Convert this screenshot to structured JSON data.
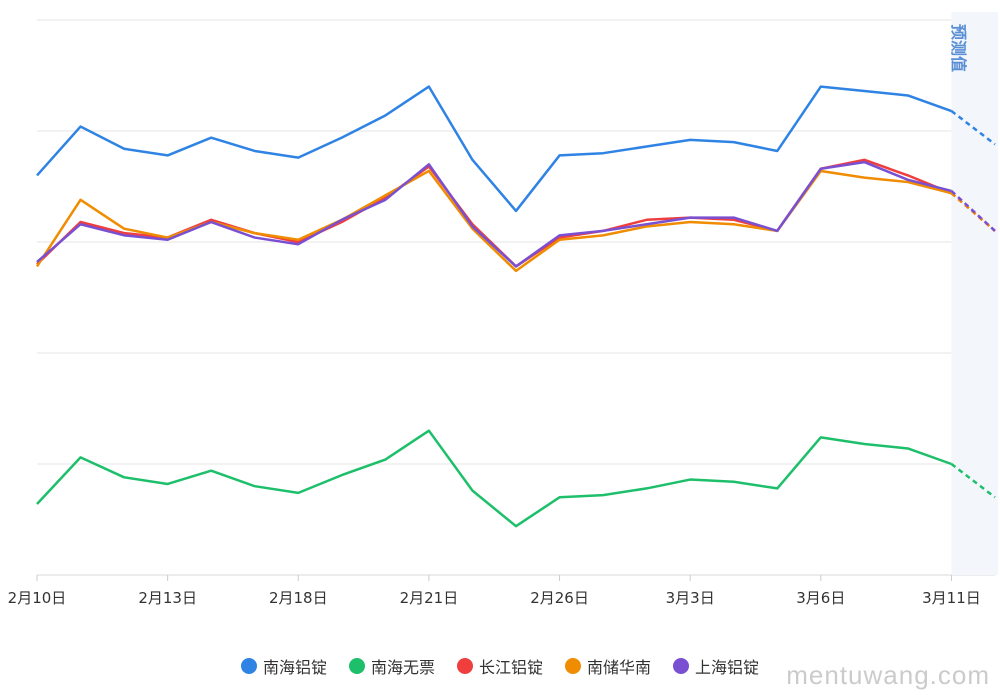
{
  "chart_data": {
    "type": "line",
    "x": [
      "2月10日",
      "",
      "",
      "2月13日",
      "",
      "",
      "2月18日",
      "",
      "",
      "2月21日",
      "",
      "",
      "2月26日",
      "",
      "",
      "3月3日",
      "",
      "",
      "3月6日",
      "",
      "",
      "3月11日",
      ""
    ],
    "xtick_labels": [
      "2月10日",
      "2月13日",
      "2月18日",
      "2月21日",
      "2月26日",
      "3月3日",
      "3月6日",
      "3月11日"
    ],
    "forecast_start_index": 21,
    "forecast_label": "预测值",
    "grid": true,
    "legend_position": "bottom",
    "series": [
      {
        "name": "南海铝锭",
        "color": "#2f83e4",
        "values": [
          90,
          101,
          96,
          94.5,
          98.5,
          95.5,
          94,
          98.5,
          103.5,
          110,
          93.5,
          82,
          94.5,
          95,
          96.5,
          98,
          97.5,
          95.5,
          110,
          109,
          108,
          104.5,
          97
        ]
      },
      {
        "name": "南海无票",
        "color": "#1ebf6b",
        "values": [
          16,
          26.5,
          22,
          20.5,
          23.5,
          20,
          18.5,
          22.5,
          26,
          32.5,
          19,
          11,
          17.5,
          18,
          19.5,
          21.5,
          21,
          19.5,
          31,
          29.5,
          28.5,
          25,
          17.5
        ]
      },
      {
        "name": "长江铝锭",
        "color": "#f03e3e",
        "values": [
          70,
          79.5,
          77,
          76,
          80,
          77,
          75,
          79.5,
          85,
          92,
          79,
          69.5,
          76,
          77.5,
          80,
          80.5,
          80,
          77.5,
          91.5,
          93.5,
          90,
          86,
          77.5
        ]
      },
      {
        "name": "南储华南",
        "color": "#f08c00",
        "values": [
          69.5,
          84.5,
          78,
          76,
          79.5,
          77,
          75.5,
          80,
          85.5,
          91,
          78,
          68.5,
          75.5,
          76.5,
          78.5,
          79.5,
          79,
          77.5,
          91,
          89.5,
          88.5,
          86,
          77.5
        ]
      },
      {
        "name": "上海铝锭",
        "color": "#7950d2",
        "values": [
          70.5,
          79,
          76.5,
          75.5,
          79.5,
          76,
          74.5,
          80,
          84.5,
          92.5,
          78.5,
          69.5,
          76.5,
          77.5,
          79,
          80.5,
          80.5,
          77.5,
          91.5,
          93,
          89,
          86.5,
          77.5
        ]
      }
    ]
  },
  "legend": {
    "items": [
      {
        "label": "南海铝锭",
        "color": "#2f83e4"
      },
      {
        "label": "南海无票",
        "color": "#1ebf6b"
      },
      {
        "label": "长江铝锭",
        "color": "#f03e3e"
      },
      {
        "label": "南储华南",
        "color": "#f08c00"
      },
      {
        "label": "上海铝锭",
        "color": "#7950d2"
      }
    ]
  },
  "watermark": "mentuwang.com"
}
